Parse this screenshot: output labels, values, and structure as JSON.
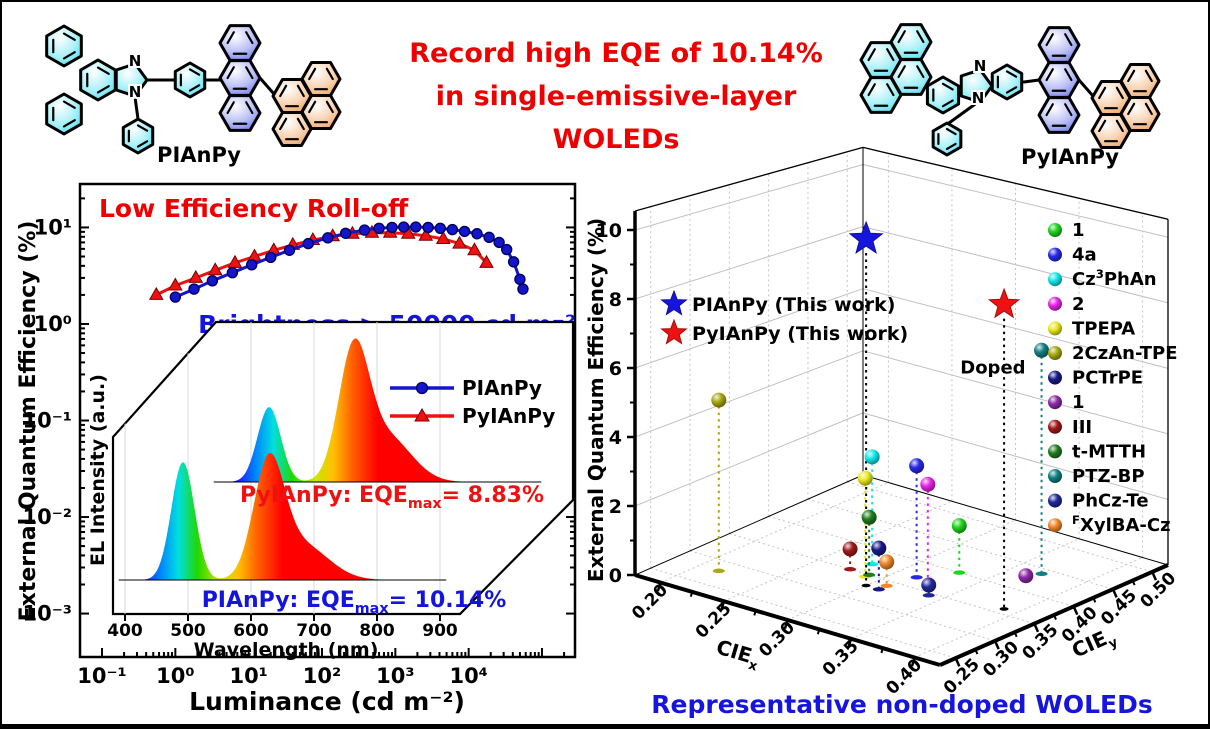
{
  "figure": {
    "headline_line1": "Record high EQE of 10.14%",
    "headline_line2": "in single-emissive-layer WOLEDs",
    "headline_color": "#ee0000"
  },
  "molecules": [
    {
      "name": "PIAnPy",
      "colors": {
        "imidazole_unit": "#7df0f5",
        "anthracene": "#8a8af0",
        "pyrene": "#ffc9a0"
      }
    },
    {
      "name": "PyIAnPy",
      "colors": {
        "imidazole_unit": "#7df0f5",
        "anthracene": "#8a8af0",
        "pyrene": "#ffc9a0"
      }
    }
  ],
  "chart_data": [
    {
      "type": "line",
      "xlabel": "Luminance (cd m⁻²)",
      "ylabel": "External Quantum Efficiency (%)",
      "xscale": "log",
      "yscale": "log",
      "xlim": [
        0.05,
        280000
      ],
      "ylim": [
        0.0004,
        28
      ],
      "xtick_labels": [
        "10⁻¹",
        "10⁰",
        "10¹",
        "10²",
        "10³",
        "10⁴"
      ],
      "ytick_labels": [
        "10¹",
        "10⁰",
        "10⁻¹",
        "10⁻²",
        "10⁻³"
      ],
      "annotation_roll_off": {
        "text": "Low Efficiency Roll-off",
        "color": "#ee0000"
      },
      "annotation_brightness": {
        "text": "Brightness > 50000 cd m⁻²",
        "color": "#1414dd"
      },
      "series": [
        {
          "name": "PyIAnPy",
          "color": "#ee1111",
          "marker": "triangle",
          "x": [
            0.55,
            1.0,
            1.9,
            3.5,
            6.5,
            12,
            22,
            40,
            75,
            140,
            260,
            480,
            850,
            1500,
            2600,
            4500,
            7500,
            12000,
            17500
          ],
          "y": [
            2.0,
            2.5,
            3.0,
            3.6,
            4.3,
            5.0,
            5.8,
            6.6,
            7.4,
            8.1,
            8.6,
            8.8,
            8.8,
            8.6,
            8.2,
            7.6,
            6.8,
            5.8,
            4.3
          ]
        },
        {
          "name": "PIAnPy",
          "color": "#1515cc",
          "marker": "circle",
          "x": [
            1,
            1.8,
            3.2,
            6,
            11,
            20,
            36,
            65,
            120,
            210,
            380,
            600,
            900,
            1300,
            1900,
            2800,
            4100,
            6000,
            8800,
            13000,
            19000,
            26000,
            33000,
            41000,
            50000,
            55000
          ],
          "y": [
            1.9,
            2.3,
            2.8,
            3.4,
            4.1,
            4.9,
            5.8,
            6.8,
            7.8,
            8.7,
            9.4,
            9.8,
            10.0,
            10.1,
            10.1,
            10.0,
            9.8,
            9.5,
            9.1,
            8.6,
            7.9,
            7.0,
            5.9,
            4.4,
            2.9,
            2.3
          ]
        }
      ]
    },
    {
      "type": "area",
      "xlabel": "Wavelength (nm)",
      "ylabel": "EL Intensity (a.u.)",
      "xticks": [
        400,
        500,
        600,
        700,
        800,
        900
      ],
      "legend": [
        {
          "name": "PIAnPy",
          "color": "#1515cc",
          "marker": "circle"
        },
        {
          "name": "PyIAnPy",
          "color": "#ee1111",
          "marker": "triangle"
        }
      ],
      "series": [
        {
          "name": "PIAnPy",
          "color": "#1515cc",
          "annotation": {
            "pre": "PIAnPy: EQE",
            "sub": "max",
            "post": "= 10.14%",
            "color": "#1414dd"
          },
          "peaks": [
            {
              "nm": 492,
              "h": 1.0,
              "w": 26
            },
            {
              "nm": 628,
              "h": 0.93,
              "w": 34
            },
            {
              "nm": 680,
              "h": 0.3,
              "w": 60
            }
          ]
        },
        {
          "name": "PyIAnPy",
          "color": "#ee1111",
          "annotation": {
            "pre": "PyIAnPy: EQE",
            "sub": "max",
            "post": "= 8.83%",
            "color": "#ee1111"
          },
          "peaks": [
            {
              "nm": 478,
              "h": 0.6,
              "w": 26
            },
            {
              "nm": 612,
              "h": 1.0,
              "w": 34
            },
            {
              "nm": 665,
              "h": 0.36,
              "w": 55
            }
          ]
        }
      ]
    },
    {
      "type": "scatter",
      "ylabel": "External Quantum Efficiency (%)",
      "xlabel": {
        "pre": "CIE",
        "sub": "x"
      },
      "zlabel": {
        "pre": "CIE",
        "sub": "y"
      },
      "eqe_ticks": [
        0,
        2,
        4,
        6,
        8,
        10
      ],
      "ciex_ticks": [
        0.2,
        0.25,
        0.3,
        0.35,
        0.4
      ],
      "ciey_ticks": [
        0.25,
        0.3,
        0.35,
        0.4,
        0.45,
        0.5
      ],
      "this_work": [
        {
          "name": "PIAnPy (This work)",
          "color": "#1515dd",
          "ciex": 0.3,
          "ciey": 0.33,
          "eqe": 10.14
        },
        {
          "name": "PyIAnPy (This work)",
          "color": "#ee1111",
          "ciex": 0.39,
          "ciey": 0.36,
          "eqe": 8.83
        }
      ],
      "annotation": "Doped",
      "points": [
        {
          "label": [
            [
              "n",
              "1"
            ]
          ],
          "color": "#1ed31e",
          "ciex": 0.33,
          "ciey": 0.4,
          "eqe": 1.4
        },
        {
          "label": [
            [
              "n",
              "4a"
            ]
          ],
          "color": "#2828e8",
          "ciex": 0.315,
          "ciey": 0.37,
          "eqe": 3.3
        },
        {
          "label": [
            [
              "n",
              "Cz"
            ],
            [
              "sup",
              "3"
            ],
            [
              "n",
              "PhAn"
            ]
          ],
          "color": "#10e8e8",
          "ciex": 0.28,
          "ciey": 0.37,
          "eqe": 3.2
        },
        {
          "label": [
            [
              "n",
              "2"
            ]
          ],
          "color": "#e822e8",
          "ciex": 0.33,
          "ciey": 0.36,
          "eqe": 3.0
        },
        {
          "label": [
            [
              "n",
              "TPEPA"
            ]
          ],
          "color": "#e8e820",
          "ciex": 0.29,
          "ciey": 0.345,
          "eqe": 2.9
        },
        {
          "label": [
            [
              "n",
              "2CzAn-TPE"
            ]
          ],
          "color": "#a8a810",
          "ciex": 0.215,
          "ciey": 0.28,
          "eqe": 5.0
        },
        {
          "label": [
            [
              "n",
              "PCTrPE"
            ]
          ],
          "color": "#181888",
          "ciex": 0.31,
          "ciey": 0.33,
          "eqe": 1.2
        },
        {
          "label": [
            [
              "n",
              "1"
            ]
          ],
          "color": "#8d28a8",
          "ciex": 0.37,
          "ciey": 0.42,
          "eqe": 0.15
        },
        {
          "label": [
            [
              "n",
              "III"
            ]
          ],
          "color": "#a01818",
          "ciex": 0.275,
          "ciey": 0.35,
          "eqe": 0.6
        },
        {
          "label": [
            [
              "n",
              "t-MTTH"
            ]
          ],
          "color": "#1e7d1e",
          "ciex": 0.29,
          "ciey": 0.35,
          "eqe": 1.7
        },
        {
          "label": [
            [
              "n",
              "PTZ-BP"
            ]
          ],
          "color": "#108080",
          "ciex": 0.37,
          "ciey": 0.44,
          "eqe": 6.7,
          "annotated": true
        },
        {
          "label": [
            [
              "n",
              "PhCz-Te"
            ]
          ],
          "color": "#202898",
          "ciex": 0.34,
          "ciey": 0.345,
          "eqe": 0.3
        },
        {
          "label": [
            [
              "sup",
              "F"
            ],
            [
              "n",
              "XylBA-Cz"
            ]
          ],
          "color": "#f08828",
          "ciex": 0.31,
          "ciey": 0.34,
          "eqe": 0.7
        }
      ],
      "caption": "Representative non-doped WOLEDs"
    }
  ]
}
